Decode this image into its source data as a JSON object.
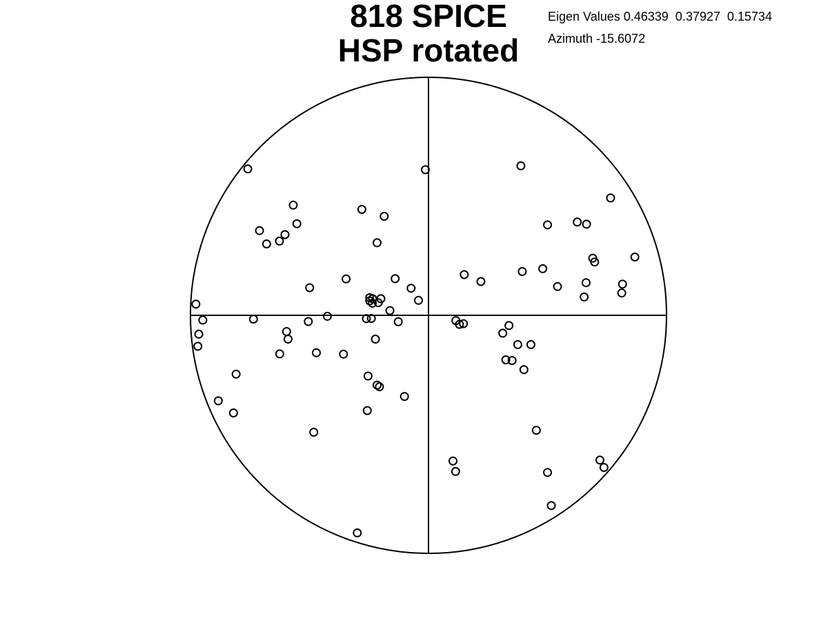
{
  "figure": {
    "title_line_1": "818 SPICE",
    "title_line_2": "HSP rotated",
    "eigen_values_text": "Eigen Values 0.46339  0.37927  0.15734",
    "azimuth_text": "Azimuth -15.6072"
  },
  "colors": {
    "background": "#ffffff",
    "line": "#000000",
    "marker": "#000000"
  },
  "chart_data": {
    "type": "scatter",
    "title": "818 SPICE HSP rotated",
    "subtitle": "",
    "xlabel": "",
    "ylabel": "",
    "xlim": [
      -1,
      1
    ],
    "ylim": [
      -1,
      1
    ],
    "grid": false,
    "legend": "none",
    "projection": "stereonet",
    "eigen_values": [
      0.46339,
      0.37927,
      0.15734
    ],
    "azimuth": -15.6072,
    "marker": "open-circle",
    "points": [
      [
        -0.759,
        0.615
      ],
      [
        -0.013,
        0.612
      ],
      [
        0.388,
        0.628
      ],
      [
        0.765,
        0.493
      ],
      [
        -0.568,
        0.463
      ],
      [
        -0.28,
        0.445
      ],
      [
        -0.186,
        0.416
      ],
      [
        -0.553,
        0.385
      ],
      [
        -0.626,
        0.312
      ],
      [
        -0.68,
        0.3
      ],
      [
        -0.71,
        0.356
      ],
      [
        -0.603,
        0.339
      ],
      [
        -0.216,
        0.305
      ],
      [
        0.5,
        0.38
      ],
      [
        0.625,
        0.392
      ],
      [
        0.664,
        0.383
      ],
      [
        0.69,
        0.24
      ],
      [
        0.698,
        0.224
      ],
      [
        0.867,
        0.245
      ],
      [
        0.15,
        0.171
      ],
      [
        0.394,
        0.184
      ],
      [
        0.48,
        0.196
      ],
      [
        0.22,
        0.142
      ],
      [
        0.542,
        0.121
      ],
      [
        0.662,
        0.137
      ],
      [
        0.815,
        0.131
      ],
      [
        0.654,
        0.077
      ],
      [
        0.812,
        0.094
      ],
      [
        -0.499,
        0.116
      ],
      [
        -0.346,
        0.153
      ],
      [
        -0.14,
        0.154
      ],
      [
        -0.073,
        0.114
      ],
      [
        -0.247,
        0.074
      ],
      [
        -0.247,
        0.061
      ],
      [
        -0.235,
        0.07
      ],
      [
        -0.2,
        0.07
      ],
      [
        -0.236,
        0.051
      ],
      [
        -0.211,
        0.053
      ],
      [
        -0.042,
        0.063
      ],
      [
        -0.162,
        0.02
      ],
      [
        -0.977,
        0.047
      ],
      [
        -0.948,
        -0.02
      ],
      [
        -0.735,
        -0.016
      ],
      [
        -0.505,
        -0.026
      ],
      [
        -0.425,
        -0.004
      ],
      [
        -0.24,
        -0.013
      ],
      [
        -0.261,
        -0.014
      ],
      [
        -0.127,
        -0.027
      ],
      [
        0.115,
        -0.022
      ],
      [
        0.13,
        -0.038
      ],
      [
        0.147,
        -0.035
      ],
      [
        0.338,
        -0.043
      ],
      [
        -0.596,
        -0.068
      ],
      [
        -0.59,
        -0.1
      ],
      [
        -0.965,
        -0.079
      ],
      [
        -0.969,
        -0.13
      ],
      [
        -0.223,
        -0.1
      ],
      [
        0.312,
        -0.075
      ],
      [
        0.375,
        -0.123
      ],
      [
        0.43,
        -0.123
      ],
      [
        -0.625,
        -0.162
      ],
      [
        -0.471,
        -0.157
      ],
      [
        -0.357,
        -0.163
      ],
      [
        0.325,
        -0.187
      ],
      [
        0.351,
        -0.19
      ],
      [
        0.401,
        -0.228
      ],
      [
        -0.808,
        -0.247
      ],
      [
        -0.254,
        -0.255
      ],
      [
        -0.216,
        -0.293
      ],
      [
        -0.206,
        -0.3
      ],
      [
        -0.101,
        -0.341
      ],
      [
        -0.883,
        -0.359
      ],
      [
        -0.819,
        -0.41
      ],
      [
        -0.257,
        -0.4
      ],
      [
        -0.482,
        -0.491
      ],
      [
        0.453,
        -0.483
      ],
      [
        0.103,
        -0.612
      ],
      [
        0.114,
        -0.656
      ],
      [
        0.5,
        -0.66
      ],
      [
        0.72,
        -0.608
      ],
      [
        0.737,
        -0.639
      ],
      [
        0.516,
        -0.799
      ],
      [
        -0.299,
        -0.914
      ]
    ]
  }
}
